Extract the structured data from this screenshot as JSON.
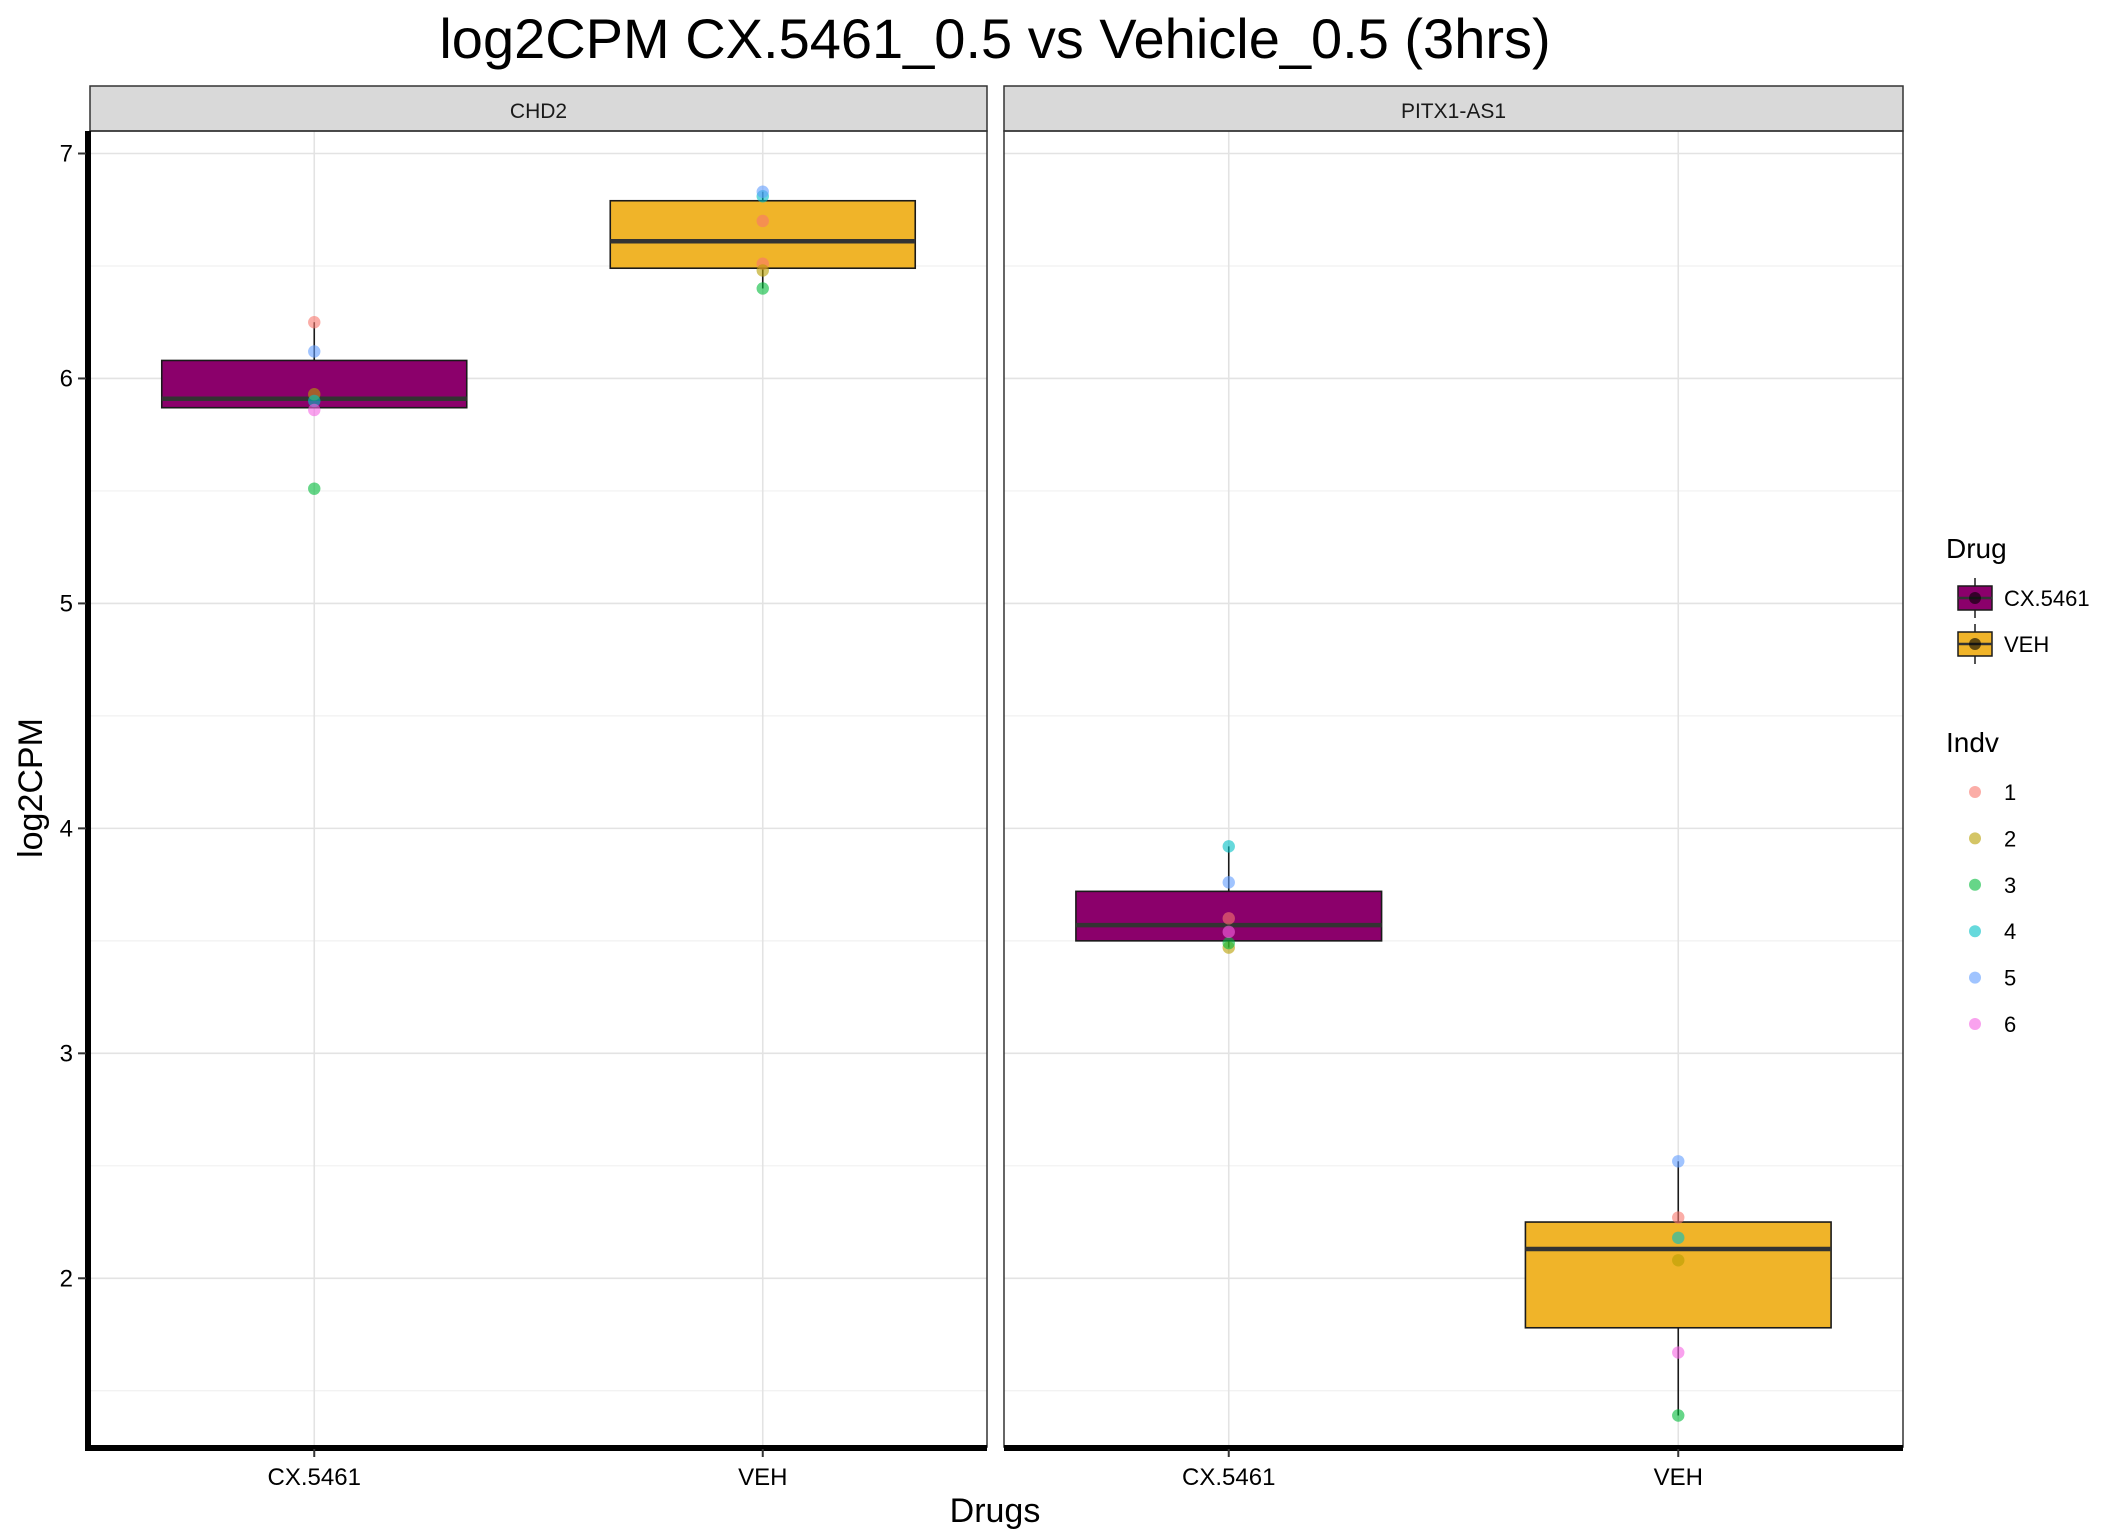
{
  "chart_data": {
    "type": "boxplot",
    "title": "log2CPM CX.5461_0.5 vs Vehicle_0.5 (3hrs)",
    "xlabel": "Drugs",
    "ylabel": "log2CPM",
    "ylim": [
      1.25,
      7.1
    ],
    "yticks": [
      2,
      3,
      4,
      5,
      6,
      7
    ],
    "categories": [
      "CX.5461",
      "VEH"
    ],
    "drug_colors": {
      "CX.5461": "#8B006B",
      "VEH": "#F0B429"
    },
    "indv_colors": {
      "1": "#F8766D",
      "2": "#B79F00",
      "3": "#00BA38",
      "4": "#00BFC4",
      "5": "#619CFF",
      "6": "#F564E3"
    },
    "legend": {
      "placement": "right",
      "drug_title": "Drug",
      "drug_items": [
        "CX.5461",
        "VEH"
      ],
      "indv_title": "Indv",
      "indv_items": [
        "1",
        "2",
        "3",
        "4",
        "5",
        "6"
      ]
    },
    "panels": [
      {
        "strip": "CHD2",
        "boxes": [
          {
            "drug": "CX.5461",
            "q1": 5.87,
            "median": 5.91,
            "q3": 6.08,
            "whisker_low": 5.87,
            "whisker_high": 6.25,
            "points": [
              {
                "indv": "1",
                "y": 6.25
              },
              {
                "indv": "2",
                "y": 5.93
              },
              {
                "indv": "3",
                "y": 5.51
              },
              {
                "indv": "4",
                "y": 5.9
              },
              {
                "indv": "5",
                "y": 6.12
              },
              {
                "indv": "6",
                "y": 5.86
              }
            ]
          },
          {
            "drug": "VEH",
            "q1": 6.49,
            "median": 6.61,
            "q3": 6.79,
            "whisker_low": 6.4,
            "whisker_high": 6.83,
            "points": [
              {
                "indv": "1",
                "y": 6.51
              },
              {
                "indv": "2",
                "y": 6.48
              },
              {
                "indv": "3",
                "y": 6.4
              },
              {
                "indv": "4",
                "y": 6.81
              },
              {
                "indv": "5",
                "y": 6.83
              },
              {
                "indv": "1",
                "y": 6.7
              }
            ]
          }
        ]
      },
      {
        "strip": "PITX1-AS1",
        "boxes": [
          {
            "drug": "CX.5461",
            "q1": 3.5,
            "median": 3.57,
            "q3": 3.72,
            "whisker_low": 3.47,
            "whisker_high": 3.92,
            "points": [
              {
                "indv": "1",
                "y": 3.6
              },
              {
                "indv": "2",
                "y": 3.47
              },
              {
                "indv": "3",
                "y": 3.49
              },
              {
                "indv": "4",
                "y": 3.92
              },
              {
                "indv": "5",
                "y": 3.76
              },
              {
                "indv": "6",
                "y": 3.54
              }
            ]
          },
          {
            "drug": "VEH",
            "q1": 1.78,
            "median": 2.13,
            "q3": 2.25,
            "whisker_low": 1.39,
            "whisker_high": 2.52,
            "points": [
              {
                "indv": "1",
                "y": 2.27
              },
              {
                "indv": "2",
                "y": 2.08
              },
              {
                "indv": "3",
                "y": 1.39
              },
              {
                "indv": "4",
                "y": 2.18
              },
              {
                "indv": "5",
                "y": 2.52
              },
              {
                "indv": "6",
                "y": 1.67
              }
            ]
          }
        ]
      }
    ]
  }
}
